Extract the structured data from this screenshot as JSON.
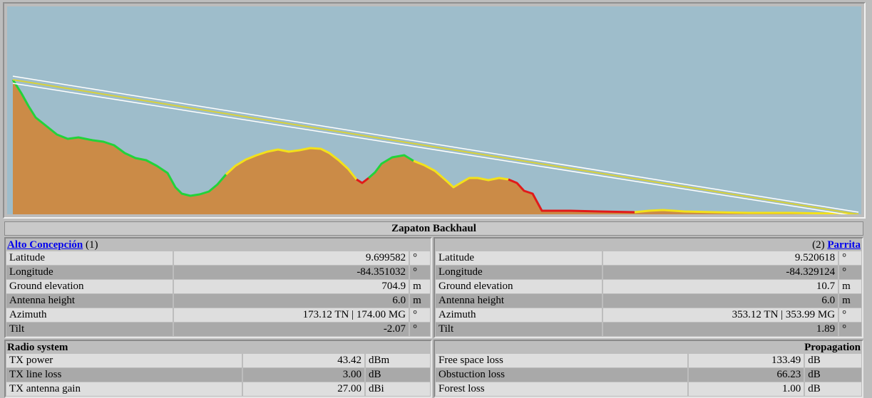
{
  "link_title": "Zapaton Backhaul",
  "colors": {
    "sky": "#9ebdcb",
    "terrain": "#cb8b47",
    "clear": "#22d33a",
    "marginal": "#f3e11a",
    "obstructed": "#e11a1a",
    "fresnel": "#ffffff",
    "link_link": "#0000ee"
  },
  "site_a": {
    "name": "Alto Concepción",
    "index_label": "(1)",
    "rows": [
      {
        "label": "Latitude",
        "value": "9.699582",
        "unit": "°"
      },
      {
        "label": "Longitude",
        "value": "-84.351032",
        "unit": "°"
      },
      {
        "label": "Ground elevation",
        "value": "704.9",
        "unit": "m"
      },
      {
        "label": "Antenna height",
        "value": "6.0",
        "unit": "m"
      },
      {
        "label": "Azimuth",
        "value": "173.12 TN | 174.00 MG",
        "unit": "°"
      },
      {
        "label": "Tilt",
        "value": "-2.07",
        "unit": "°"
      }
    ]
  },
  "site_b": {
    "name": "Parrita",
    "index_label": "(2)",
    "rows": [
      {
        "label": "Latitude",
        "value": "9.520618",
        "unit": "°"
      },
      {
        "label": "Longitude",
        "value": "-84.329124",
        "unit": "°"
      },
      {
        "label": "Ground elevation",
        "value": "10.7",
        "unit": "m"
      },
      {
        "label": "Antenna height",
        "value": "6.0",
        "unit": "m"
      },
      {
        "label": "Azimuth",
        "value": "353.12 TN | 353.99 MG",
        "unit": "°"
      },
      {
        "label": "Tilt",
        "value": "1.89",
        "unit": "°"
      }
    ]
  },
  "radio": {
    "title": "Radio system",
    "rows": [
      {
        "label": "TX power",
        "value": "43.42",
        "unit": "dBm"
      },
      {
        "label": "TX line loss",
        "value": "3.00",
        "unit": "dB"
      },
      {
        "label": "TX antenna gain",
        "value": "27.00",
        "unit": "dBi"
      }
    ]
  },
  "propagation": {
    "title": "Propagation",
    "rows": [
      {
        "label": "Free space loss",
        "value": "133.49",
        "unit": "dB"
      },
      {
        "label": "Obstuction loss",
        "value": "66.23",
        "unit": "dB"
      },
      {
        "label": "Forest loss",
        "value": "1.00",
        "unit": "dB"
      }
    ]
  }
}
